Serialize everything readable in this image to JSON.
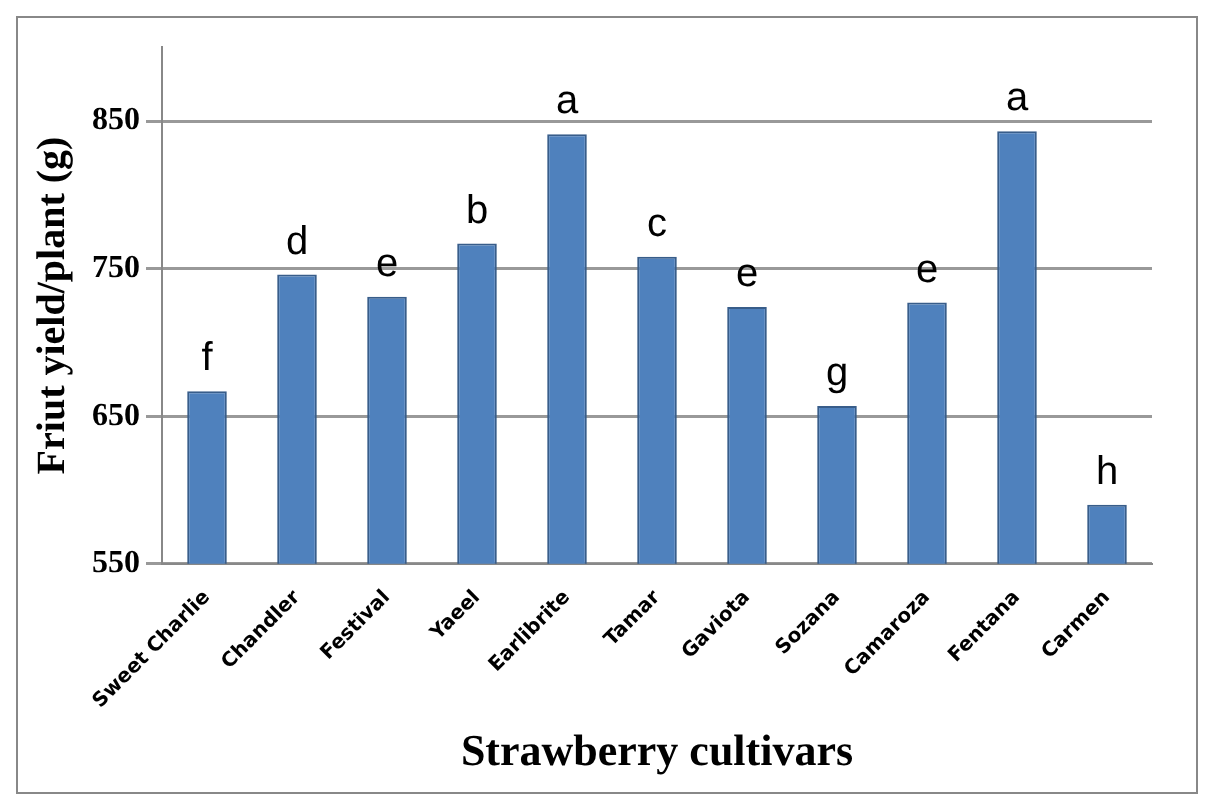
{
  "chart_data": {
    "type": "bar",
    "xlabel": "Strawberry cultivars",
    "ylabel": "Friut yield/plant (g)",
    "categories": [
      "Sweet Charlie",
      "Chandler",
      "Festival",
      "Yaeel",
      "Earlibrite",
      "Tamar",
      "Gaviota",
      "Sozana",
      "Camaroza",
      "Fentana",
      "Carmen"
    ],
    "values": [
      667,
      746,
      731,
      767,
      841,
      758,
      724,
      657,
      727,
      843,
      590
    ],
    "color": "#4f81bd",
    "ylim": [
      550,
      900
    ],
    "yticks": [
      550,
      650,
      750,
      850
    ],
    "grid": "y",
    "legend": false,
    "annotations": [
      {
        "text": "f",
        "x": "Sweet Charlie",
        "y": 667
      },
      {
        "text": "d",
        "x": "Chandler",
        "y": 746
      },
      {
        "text": "e",
        "x": "Festival",
        "y": 731
      },
      {
        "text": "b",
        "x": "Yaeel",
        "y": 767
      },
      {
        "text": "a",
        "x": "Earlibrite",
        "y": 841
      },
      {
        "text": "c",
        "x": "Tamar",
        "y": 758
      },
      {
        "text": "e",
        "x": "Gaviota",
        "y": 724
      },
      {
        "text": "g",
        "x": "Sozana",
        "y": 657
      },
      {
        "text": "e",
        "x": "Camaroza",
        "y": 727
      },
      {
        "text": "a",
        "x": "Fentana",
        "y": 843
      },
      {
        "text": "h",
        "x": "Carmen",
        "y": 590
      }
    ]
  }
}
